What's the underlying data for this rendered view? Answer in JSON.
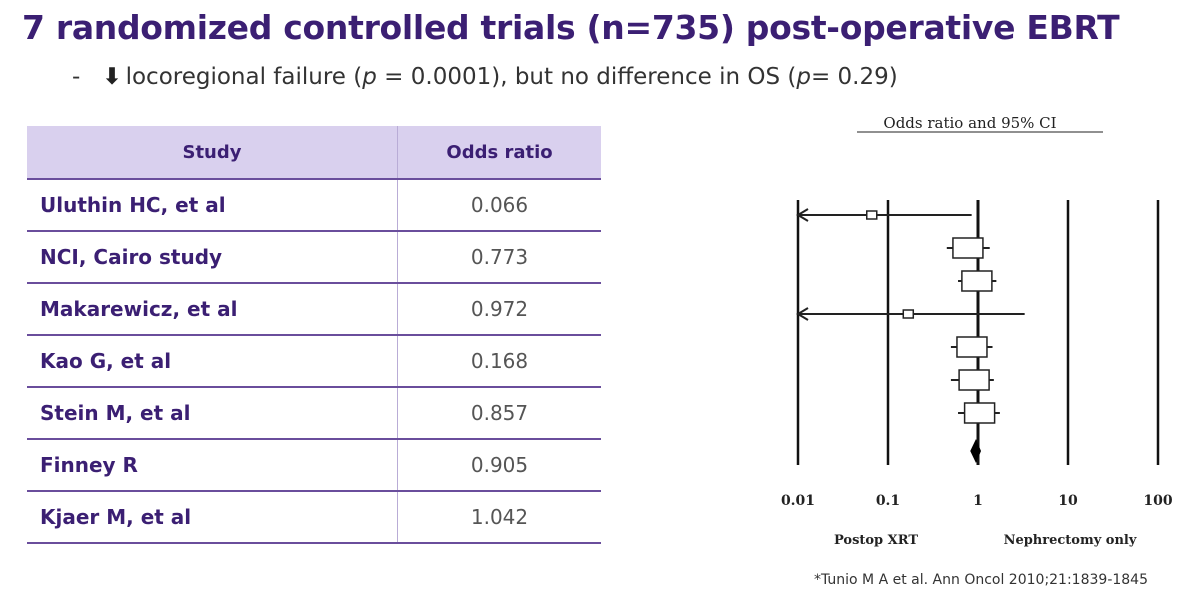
{
  "slide": {
    "title": "7 randomized controlled trials (n=735) post-operative EBRT",
    "bullet": {
      "dash": "-",
      "arrow": "⬇",
      "text_a": "locoregional failure (",
      "p_symbol_1": "p",
      "text_b": " = 0.0001), but no difference in OS (",
      "p_symbol_2": "p",
      "text_c": "= 0.29)"
    },
    "citation": "*Tunio M A et al. Ann Oncol 2010;21:1839-1845"
  },
  "table": {
    "headers": [
      "Study",
      "Odds ratio"
    ],
    "rows": [
      {
        "study": "Uluthin HC, et al",
        "odds_ratio": "0.066"
      },
      {
        "study": "NCI, Cairo study",
        "odds_ratio": "0.773"
      },
      {
        "study": "Makarewicz, et al",
        "odds_ratio": "0.972"
      },
      {
        "study": "Kao G, et al",
        "odds_ratio": "0.168"
      },
      {
        "study": "Stein M, et al",
        "odds_ratio": "0.857"
      },
      {
        "study": "Finney R",
        "odds_ratio": "0.905"
      },
      {
        "study": "Kjaer M, et al",
        "odds_ratio": "1.042"
      }
    ]
  },
  "chart_data": {
    "type": "forest",
    "title": "Odds ratio and 95% CI",
    "x_scale": "log",
    "xlim": [
      0.01,
      100
    ],
    "ticks": [
      {
        "value": 0.01,
        "label": "0.01"
      },
      {
        "value": 0.1,
        "label": "0.1"
      },
      {
        "value": 1,
        "label": "1"
      },
      {
        "value": 10,
        "label": "10"
      },
      {
        "value": 100,
        "label": "100"
      }
    ],
    "left_label": "Postop XRT",
    "right_label": "Nephrectomy only",
    "studies": [
      {
        "or": 0.066,
        "lo": 0.01,
        "hi": 0.85,
        "arrow_left": true
      },
      {
        "or": 0.773,
        "lo": 0.45,
        "hi": 1.35,
        "arrow_left": false
      },
      {
        "or": 0.972,
        "lo": 0.6,
        "hi": 1.6,
        "arrow_left": false
      },
      {
        "or": 0.168,
        "lo": 0.01,
        "hi": 3.3,
        "arrow_left": true
      },
      {
        "or": 0.857,
        "lo": 0.5,
        "hi": 1.45,
        "arrow_left": false
      },
      {
        "or": 0.905,
        "lo": 0.5,
        "hi": 1.5,
        "arrow_left": false
      },
      {
        "or": 1.042,
        "lo": 0.6,
        "hi": 1.75,
        "arrow_left": false
      }
    ],
    "pooled": {
      "or": 0.95,
      "lo": 0.82,
      "hi": 1.08
    }
  }
}
